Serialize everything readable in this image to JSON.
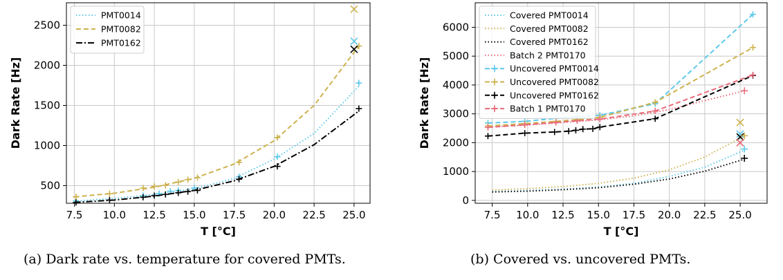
{
  "captions": {
    "a": "(a) Dark rate vs. temperature for covered PMTs.",
    "b": "(b) Covered vs. uncovered PMTs."
  },
  "chart_data": [
    {
      "type": "line",
      "title": "",
      "xlabel": "T [°C]",
      "ylabel": "Dark Rate [Hz]",
      "xlim": [
        7.0,
        26.0
      ],
      "ylim": [
        280,
        2780
      ],
      "xticks": [
        "7.5",
        "10.0",
        "12.5",
        "15.0",
        "17.5",
        "20.0",
        "22.5",
        "25.0"
      ],
      "yticks": [
        "500",
        "1000",
        "1500",
        "2000",
        "2500"
      ],
      "grid": true,
      "legend_position": "top-left",
      "series": [
        {
          "name": "PMT0014",
          "color": "#5bc8ea",
          "dash": "dotted",
          "x": [
            7.6,
            11.8,
            12.8,
            13.5,
            14.0,
            15.0,
            17.8,
            20.2,
            25.3
          ],
          "y": [
            310,
            375,
            400,
            430,
            440,
            470,
            610,
            860,
            1780
          ],
          "fit_x": [
            7.5,
            10,
            12.5,
            15,
            17.5,
            20,
            22.5,
            25.3
          ],
          "fit_y": [
            305,
            340,
            390,
            460,
            590,
            830,
            1150,
            1740
          ],
          "outlier": {
            "x": 25.0,
            "y": 2300,
            "marker": "×"
          }
        },
        {
          "name": "PMT0082",
          "color": "#cdb24d",
          "dash": "dashed",
          "x": [
            7.6,
            9.7,
            11.8,
            12.5,
            13.2,
            14.0,
            14.6,
            15.2,
            17.8,
            20.2,
            25.3
          ],
          "y": [
            360,
            400,
            470,
            490,
            505,
            545,
            575,
            600,
            790,
            1100,
            2240
          ],
          "fit_x": [
            7.5,
            10,
            12.5,
            15,
            17.5,
            20,
            22.5,
            25.3
          ],
          "fit_y": [
            360,
            405,
            480,
            590,
            770,
            1060,
            1500,
            2240
          ],
          "outlier": {
            "x": 25.0,
            "y": 2700,
            "marker": "×"
          }
        },
        {
          "name": "PMT0162",
          "color": "#000000",
          "dash": "dashdot",
          "x": [
            7.6,
            9.7,
            11.8,
            12.5,
            13.2,
            14.0,
            14.6,
            15.2,
            17.8,
            20.2,
            25.3
          ],
          "y": [
            290,
            320,
            355,
            375,
            390,
            410,
            425,
            440,
            580,
            740,
            1460
          ],
          "fit_x": [
            7.5,
            10,
            12.5,
            15,
            17.5,
            20,
            22.5,
            25.3
          ],
          "fit_y": [
            290,
            320,
            370,
            440,
            560,
            740,
            1010,
            1430
          ],
          "outlier": {
            "x": 25.0,
            "y": 2200,
            "marker": "×"
          }
        }
      ]
    },
    {
      "type": "line",
      "title": "",
      "xlabel": "T [°C]",
      "ylabel": "Dark Rate [Hz]",
      "xlim": [
        6.3,
        26.9
      ],
      "ylim": [
        -100,
        6850
      ],
      "xticks": [
        "7.5",
        "10.0",
        "12.5",
        "15.0",
        "17.5",
        "20.0",
        "22.5",
        "25.0"
      ],
      "yticks": [
        "0",
        "1000",
        "2000",
        "3000",
        "4000",
        "5000",
        "6000"
      ],
      "grid": true,
      "legend_position": "top-left",
      "series": [
        {
          "name": "Covered PMT0014",
          "color": "#5bc8ea",
          "dash": "dotted",
          "markers": false,
          "x": [
            7.5,
            10,
            12.5,
            15,
            17.5,
            20,
            22.5,
            25.3
          ],
          "y": [
            305,
            340,
            390,
            460,
            590,
            830,
            1150,
            1740
          ]
        },
        {
          "name": "Covered PMT0082",
          "color": "#cdb24d",
          "dash": "dotted",
          "markers": false,
          "x": [
            7.5,
            10,
            12.5,
            15,
            17.5,
            20,
            22.5,
            25.3
          ],
          "y": [
            360,
            405,
            480,
            590,
            770,
            1060,
            1500,
            2240
          ]
        },
        {
          "name": "Covered PMT0162",
          "color": "#000000",
          "dash": "dotted",
          "markers": false,
          "x": [
            7.5,
            10,
            12.5,
            15,
            17.5,
            20,
            22.5,
            25.3
          ],
          "y": [
            290,
            320,
            370,
            440,
            560,
            740,
            1010,
            1430
          ]
        },
        {
          "name": "Batch 2 PMT0170",
          "color": "#e96a7a",
          "dash": "dotted",
          "markers": false,
          "x": [
            7.5,
            10,
            12.5,
            15,
            17.5,
            20,
            22.5,
            25.3
          ],
          "y": [
            2550,
            2610,
            2700,
            2790,
            2930,
            3150,
            3460,
            3800
          ]
        },
        {
          "name": "Uncovered PMT0014",
          "color": "#5bc8ea",
          "dash": "dashed",
          "markers": true,
          "x": [
            7.2,
            9.8,
            12.0,
            13.5,
            15.1,
            19.0,
            25.9
          ],
          "y": [
            2680,
            2740,
            2840,
            2900,
            2950,
            3350,
            6450
          ]
        },
        {
          "name": "Uncovered PMT0082",
          "color": "#cdb24d",
          "dash": "dashed",
          "markers": true,
          "x": [
            7.2,
            9.8,
            12.0,
            13.5,
            15.1,
            19.0,
            25.9
          ],
          "y": [
            2580,
            2660,
            2740,
            2800,
            2880,
            3400,
            5300
          ]
        },
        {
          "name": "Uncovered PMT0162",
          "color": "#000000",
          "dash": "dashed",
          "markers": true,
          "x": [
            7.2,
            9.8,
            11.9,
            12.9,
            13.4,
            13.9,
            14.6,
            15.1,
            19.0,
            25.9
          ],
          "y": [
            2230,
            2330,
            2370,
            2400,
            2430,
            2470,
            2480,
            2540,
            2830,
            4330
          ]
        },
        {
          "name": "Batch 1 PMT0170",
          "color": "#e96a7a",
          "dash": "dashed",
          "markers": true,
          "x": [
            7.2,
            9.8,
            12.0,
            13.5,
            15.1,
            19.0,
            25.9
          ],
          "y": [
            2530,
            2620,
            2700,
            2760,
            2820,
            3100,
            4350
          ]
        }
      ],
      "extra_points": [
        {
          "x": 25.0,
          "y": 2700,
          "color": "#cdb24d",
          "marker": "×"
        },
        {
          "x": 25.0,
          "y": 2300,
          "color": "#5bc8ea",
          "marker": "×"
        },
        {
          "x": 25.0,
          "y": 2200,
          "color": "#000000",
          "marker": "×"
        },
        {
          "x": 25.0,
          "y": 2000,
          "color": "#e96a7a",
          "marker": "×"
        },
        {
          "x": 25.3,
          "y": 1780,
          "color": "#5bc8ea",
          "marker": "+"
        },
        {
          "x": 25.3,
          "y": 2240,
          "color": "#cdb24d",
          "marker": "+"
        },
        {
          "x": 25.3,
          "y": 1460,
          "color": "#000000",
          "marker": "+"
        },
        {
          "x": 25.3,
          "y": 3800,
          "color": "#e96a7a",
          "marker": "+"
        }
      ]
    }
  ]
}
